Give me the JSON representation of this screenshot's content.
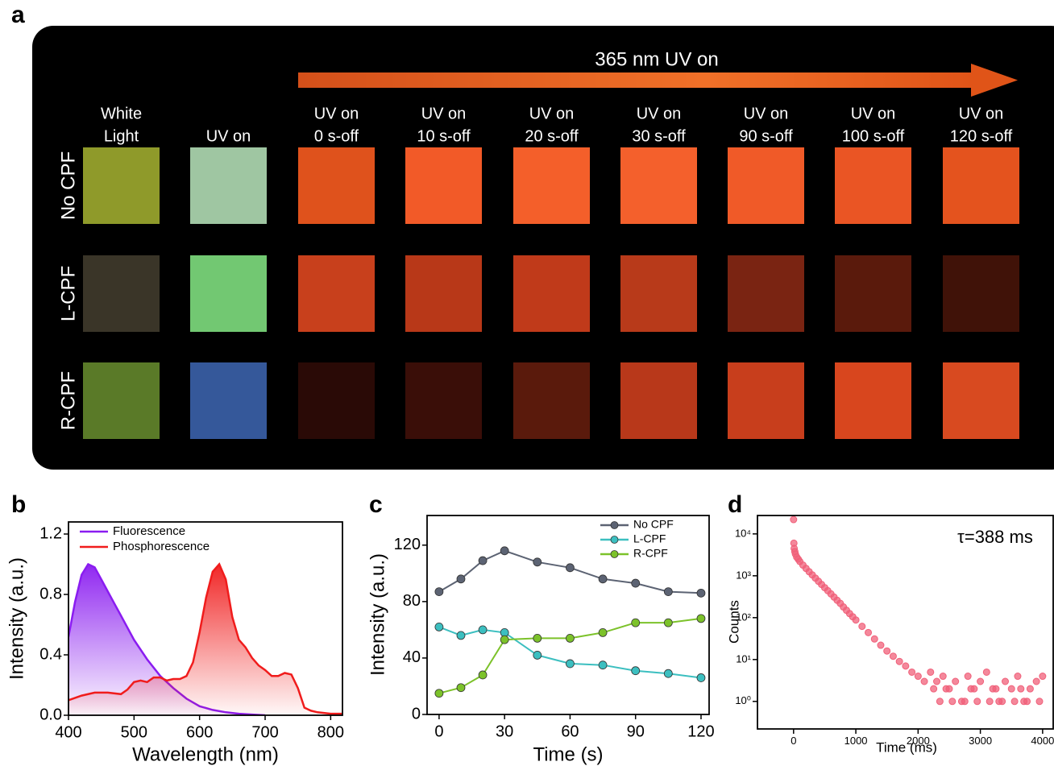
{
  "panel_labels": [
    "a",
    "b",
    "c",
    "d"
  ],
  "panel_a": {
    "title": "365 nm UV on",
    "columns": [
      [
        "White",
        "Light"
      ],
      [
        "UV on"
      ],
      [
        "UV on",
        "0 s-off"
      ],
      [
        "UV on",
        "10 s-off"
      ],
      [
        "UV on",
        "20 s-off"
      ],
      [
        "UV on",
        "30 s-off"
      ],
      [
        "UV on",
        "90 s-off"
      ],
      [
        "UV on",
        "100 s-off"
      ],
      [
        "UV on",
        "120 s-off"
      ]
    ],
    "rows": [
      {
        "label": "No CPF",
        "colors": [
          "#8f9a2a",
          "#9fc6a2",
          "#df521c",
          "#f25a28",
          "#f45f2a",
          "#f4602c",
          "#f05a28",
          "#ea5524",
          "#e4531e"
        ]
      },
      {
        "label": "L-CPF",
        "colors": [
          "#3a3528",
          "#72c872",
          "#c8401c",
          "#b83818",
          "#c03a1a",
          "#b83a1a",
          "#7a2412",
          "#5a1a0c",
          "#401208"
        ]
      },
      {
        "label": "R-CPF",
        "colors": [
          "#5a7a28",
          "#35589a",
          "#2a0a06",
          "#3a0e08",
          "#5a1a0c",
          "#b8381a",
          "#c83e1c",
          "#d8461e",
          "#d84a20"
        ]
      }
    ]
  },
  "chart_data": [
    {
      "type": "line",
      "fill_under": true,
      "legend": "upper left",
      "x_label": "Wavelength (nm)",
      "y_label": "Intensity (a.u.)",
      "xlim": [
        400,
        818
      ],
      "xticks": [
        400,
        500,
        600,
        700,
        800
      ],
      "ylim": [
        0,
        1.28
      ],
      "yticks": [
        {
          "value": 0,
          "label": "0.0"
        },
        0.4,
        0.8,
        1.2
      ],
      "series": [
        {
          "name": "Fluorescence",
          "color": "#8a1cf0",
          "x": [
            400,
            410,
            420,
            430,
            440,
            450,
            460,
            470,
            480,
            490,
            500,
            520,
            540,
            560,
            580,
            600,
            620,
            640,
            660,
            680,
            700
          ],
          "values": [
            0.52,
            0.75,
            0.93,
            1.0,
            0.98,
            0.9,
            0.82,
            0.74,
            0.66,
            0.58,
            0.5,
            0.37,
            0.26,
            0.18,
            0.11,
            0.06,
            0.035,
            0.02,
            0.01,
            0.005,
            0.0
          ]
        },
        {
          "name": "Phosphorescence",
          "color": "#f01c1c",
          "x": [
            400,
            420,
            440,
            460,
            480,
            490,
            500,
            510,
            520,
            530,
            540,
            550,
            560,
            570,
            580,
            590,
            600,
            610,
            620,
            630,
            640,
            650,
            660,
            670,
            680,
            690,
            700,
            710,
            720,
            730,
            740,
            750,
            760,
            770,
            780,
            800,
            817
          ],
          "values": [
            0.1,
            0.13,
            0.15,
            0.15,
            0.14,
            0.17,
            0.22,
            0.23,
            0.22,
            0.25,
            0.25,
            0.23,
            0.24,
            0.24,
            0.26,
            0.35,
            0.55,
            0.78,
            0.95,
            1.0,
            0.9,
            0.65,
            0.5,
            0.45,
            0.38,
            0.33,
            0.3,
            0.26,
            0.26,
            0.28,
            0.27,
            0.18,
            0.05,
            0.03,
            0.02,
            0.01,
            0.01
          ]
        }
      ]
    },
    {
      "type": "line",
      "markers": true,
      "legend": "upper right",
      "x_label": "Time (s)",
      "y_label": "Intensity (a.u.)",
      "xlim": [
        -5.5,
        123.7
      ],
      "xticks": [
        0,
        30,
        60,
        90,
        120
      ],
      "ylim": [
        0,
        141
      ],
      "yticks": [
        0,
        40,
        80,
        120
      ],
      "x": [
        0,
        10,
        20,
        30,
        45,
        60,
        75,
        90,
        105,
        120
      ],
      "series": [
        {
          "name": "No CPF",
          "color": "#5c6373",
          "values": [
            87,
            96,
            109,
            116,
            108,
            104,
            96,
            93,
            87,
            86
          ]
        },
        {
          "name": "L-CPF",
          "color": "#3cbfc0",
          "values": [
            62,
            56,
            60,
            58,
            42,
            36,
            35,
            31,
            29,
            26
          ]
        },
        {
          "name": "R-CPF",
          "color": "#7cc22a",
          "values": [
            15,
            19,
            28,
            53,
            54,
            54,
            58,
            65,
            65,
            68
          ]
        }
      ]
    },
    {
      "type": "scatter",
      "log_y": true,
      "color": "#f0607a",
      "x_label": "Time (ms)",
      "y_label": "Counts",
      "annotation": "τ=388 ms",
      "xlim": [
        -580,
        4170
      ],
      "xticks": [
        0,
        1000,
        2000,
        3000,
        4000
      ],
      "ylim": [
        0.22,
        27500
      ],
      "yticks": [
        {
          "value": 1,
          "label": "10⁰"
        },
        {
          "value": 10,
          "label": "10¹"
        },
        {
          "value": 100,
          "label": "10²"
        },
        {
          "value": 1000,
          "label": "10³"
        },
        {
          "value": 10000,
          "label": "10⁴"
        }
      ],
      "x": [
        0,
        5,
        10,
        20,
        30,
        50,
        75,
        100,
        150,
        200,
        250,
        300,
        350,
        400,
        450,
        500,
        550,
        600,
        650,
        700,
        750,
        800,
        850,
        900,
        950,
        1000,
        1100,
        1200,
        1300,
        1400,
        1500,
        1600,
        1700,
        1800,
        1900,
        2000,
        2100,
        2200,
        2250,
        2300,
        2400,
        2500,
        2600,
        2700,
        2800,
        2900,
        3000,
        3100,
        3200,
        3300,
        3400,
        3500,
        3600,
        3700,
        3800,
        3900,
        4000,
        2350,
        2550,
        2750,
        2950,
        3150,
        3350,
        3550,
        3750,
        3950,
        2450,
        2850,
        3250,
        3650
      ],
      "y": [
        22000,
        6000,
        4500,
        3800,
        3300,
        2800,
        2500,
        2200,
        1800,
        1500,
        1250,
        1050,
        880,
        740,
        620,
        520,
        440,
        370,
        310,
        260,
        220,
        180,
        150,
        125,
        105,
        88,
        62,
        44,
        31,
        22,
        16,
        12,
        9,
        7,
        5,
        4,
        3,
        5,
        2,
        3,
        4,
        2,
        3,
        1,
        4,
        2,
        3,
        5,
        2,
        1,
        3,
        2,
        4,
        1,
        2,
        3,
        4,
        1,
        1,
        1,
        1,
        1,
        1,
        1,
        1,
        1,
        2,
        2,
        2,
        2
      ]
    }
  ]
}
